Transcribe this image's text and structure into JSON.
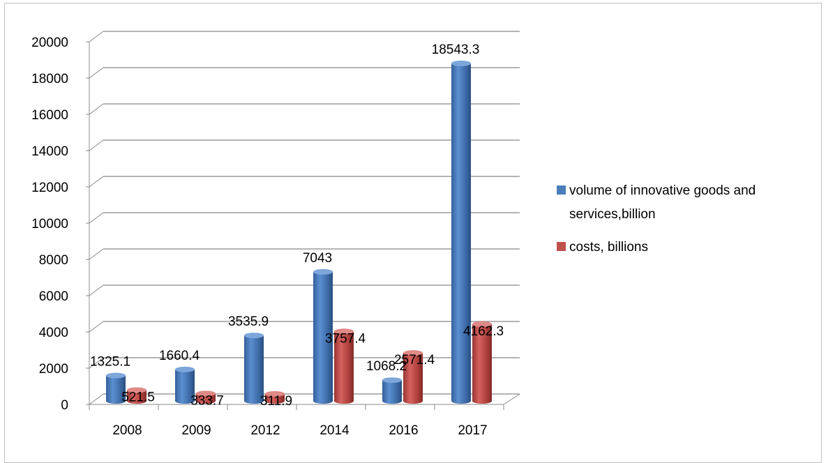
{
  "chart_data": {
    "type": "bar",
    "categories": [
      "2008",
      "2009",
      "2012",
      "2014",
      "2016",
      "2017"
    ],
    "series": [
      {
        "name": "volume of innovative goods and services,billion",
        "values": [
          1325.1,
          1660.4,
          3535.9,
          7043,
          1068.2,
          18543.3
        ],
        "labels": [
          "1325.1",
          "1660.4",
          "3535.9",
          "7043",
          "1068.2",
          "18543.3"
        ],
        "color": "#4a7ebb"
      },
      {
        "name": "costs, billions",
        "values": [
          521.5,
          333.7,
          311.9,
          3757.4,
          2571.4,
          4162.3
        ],
        "labels": [
          "521.5",
          "333.7",
          "311.9",
          "3757.4",
          "2571.4",
          "4162.3"
        ],
        "color": "#c0504d"
      }
    ],
    "yticks": [
      "0",
      "2000",
      "4000",
      "6000",
      "8000",
      "10000",
      "12000",
      "14000",
      "16000",
      "18000",
      "20000"
    ],
    "ylim": [
      0,
      20000
    ],
    "grid": true,
    "legend_position": "right",
    "style": "3d-cylinder"
  },
  "legend": {
    "series1_line1": "volume of innovative goods and",
    "series1_line2": "services,billion",
    "series2": "costs, billions"
  }
}
